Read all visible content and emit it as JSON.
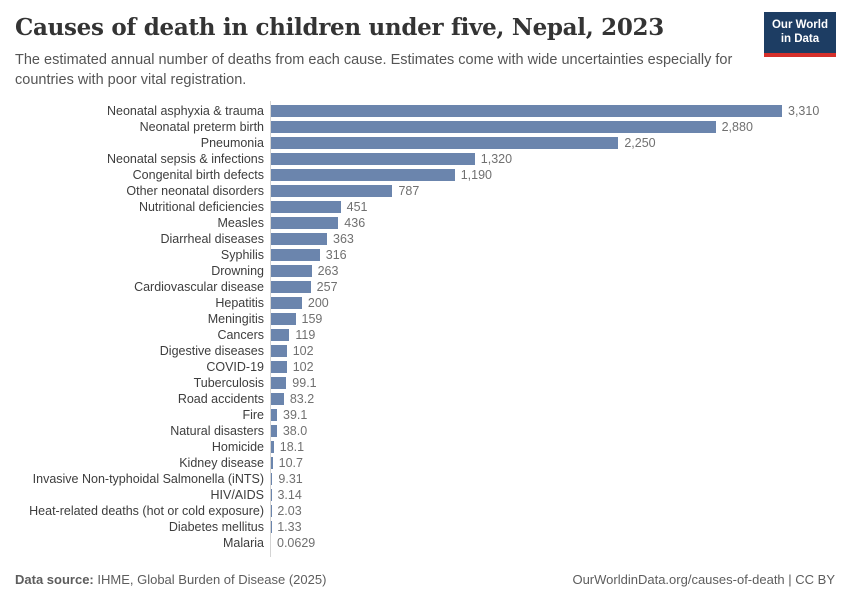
{
  "header": {
    "title": "Causes of death in children under five, Nepal, 2023",
    "subtitle": "The estimated annual number of deaths from each cause. Estimates come with wide uncertainties especially for countries with poor vital registration."
  },
  "logo": {
    "line1": "Our World",
    "line2": "in Data",
    "bg_color": "#1d3d63",
    "stripe_color": "#d6302b"
  },
  "chart_data": {
    "type": "bar",
    "orientation": "horizontal",
    "title": "Causes of death in children under five, Nepal, 2023",
    "xlabel": "",
    "ylabel": "",
    "xlim": [
      0,
      3310
    ],
    "grid": false,
    "legend": "none",
    "bar_color": "#6b85ad",
    "categories": [
      "Neonatal asphyxia & trauma",
      "Neonatal preterm birth",
      "Pneumonia",
      "Neonatal sepsis & infections",
      "Congenital birth defects",
      "Other neonatal disorders",
      "Nutritional deficiencies",
      "Measles",
      "Diarrheal diseases",
      "Syphilis",
      "Drowning",
      "Cardiovascular disease",
      "Hepatitis",
      "Meningitis",
      "Cancers",
      "Digestive diseases",
      "COVID-19",
      "Tuberculosis",
      "Road accidents",
      "Fire",
      "Natural disasters",
      "Homicide",
      "Kidney disease",
      "Invasive Non-typhoidal Salmonella (iNTS)",
      "HIV/AIDS",
      "Heat-related deaths (hot or cold exposure)",
      "Diabetes mellitus",
      "Malaria"
    ],
    "values": [
      3310,
      2880,
      2250,
      1320,
      1190,
      787,
      451,
      436,
      363,
      316,
      263,
      257,
      200,
      159,
      119,
      102,
      102,
      99.1,
      83.2,
      39.1,
      38.0,
      18.1,
      10.7,
      9.31,
      3.14,
      2.03,
      1.33,
      0.0629
    ],
    "value_labels": [
      "3,310",
      "2,880",
      "2,250",
      "1,320",
      "1,190",
      "787",
      "451",
      "436",
      "363",
      "316",
      "263",
      "257",
      "200",
      "159",
      "119",
      "102",
      "102",
      "99.1",
      "83.2",
      "39.1",
      "38.0",
      "18.1",
      "10.7",
      "9.31",
      "3.14",
      "2.03",
      "1.33",
      "0.0629"
    ]
  },
  "footer": {
    "source_label": "Data source:",
    "source_text": " IHME, Global Burden of Disease (2025)",
    "link_text": "OurWorldinData.org/causes-of-death | CC BY"
  }
}
